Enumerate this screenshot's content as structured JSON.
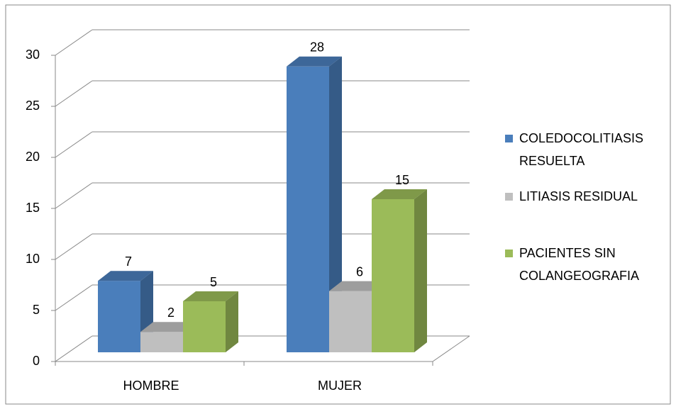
{
  "chart_data": {
    "type": "bar3d",
    "categories": [
      "HOMBRE",
      "MUJER"
    ],
    "series": [
      {
        "name": "COLEDOCOLITIASIS RESUELTA",
        "color": "#4a7ebb",
        "values": [
          7,
          28
        ]
      },
      {
        "name": "LITIASIS RESIDUAL",
        "color": "#bfbfbf",
        "values": [
          2,
          6
        ]
      },
      {
        "name": "PACIENTES SIN COLANGEOGRAFIA",
        "color": "#9bbb59",
        "values": [
          5,
          15
        ]
      }
    ],
    "ylim": [
      0,
      30
    ],
    "yticks": [
      0,
      5,
      10,
      15,
      20,
      25,
      30
    ],
    "grid": true,
    "legend": "right"
  }
}
